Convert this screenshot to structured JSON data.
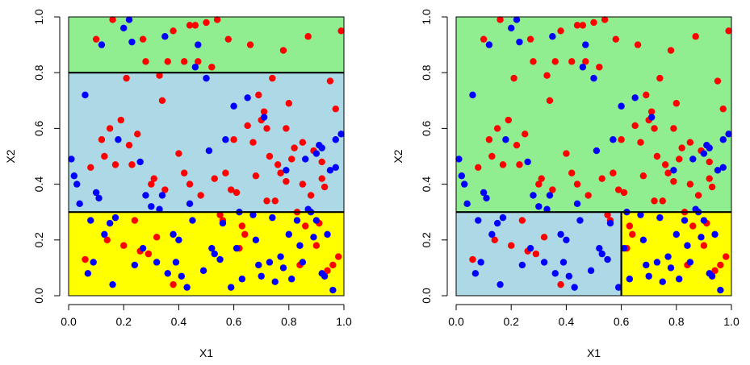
{
  "chart_data": [
    {
      "type": "scatter",
      "xlabel": "X1",
      "ylabel": "X2",
      "xlim": [
        0,
        1
      ],
      "ylim": [
        0,
        1
      ],
      "xticks": [
        "0.0",
        "0.2",
        "0.4",
        "0.6",
        "0.8",
        "1.0"
      ],
      "yticks": [
        "0.0",
        "0.2",
        "0.4",
        "0.6",
        "0.8",
        "1.0"
      ],
      "regions": [
        {
          "x0": 0,
          "x1": 1,
          "y0": 0.0,
          "y1": 0.3,
          "color": "#ffff00"
        },
        {
          "x0": 0,
          "x1": 1,
          "y0": 0.3,
          "y1": 0.8,
          "color": "#add8e6"
        },
        {
          "x0": 0,
          "x1": 1,
          "y0": 0.8,
          "y1": 1.0,
          "color": "#90ee90"
        }
      ],
      "splits": [
        {
          "x0": 0,
          "x1": 1,
          "y0": 0.3,
          "y1": 0.3
        },
        {
          "x0": 0,
          "x1": 1,
          "y0": 0.8,
          "y1": 0.8
        }
      ],
      "series": [
        {
          "color": "#ff0000",
          "points": [
            [
              0.08,
              0.46
            ],
            [
              0.12,
              0.56
            ],
            [
              0.13,
              0.5
            ],
            [
              0.15,
              0.6
            ],
            [
              0.17,
              0.47
            ],
            [
              0.19,
              0.63
            ],
            [
              0.21,
              0.78
            ],
            [
              0.23,
              0.47
            ],
            [
              0.25,
              0.58
            ],
            [
              0.27,
              0.92
            ],
            [
              0.3,
              0.4
            ],
            [
              0.33,
              0.79
            ],
            [
              0.34,
              0.7
            ],
            [
              0.36,
              0.84
            ],
            [
              0.38,
              0.95
            ],
            [
              0.4,
              0.51
            ],
            [
              0.42,
              0.44
            ],
            [
              0.44,
              0.4
            ],
            [
              0.46,
              0.97
            ],
            [
              0.48,
              0.36
            ],
            [
              0.5,
              0.98
            ],
            [
              0.53,
              0.42
            ],
            [
              0.55,
              0.29
            ],
            [
              0.57,
              0.44
            ],
            [
              0.59,
              0.38
            ],
            [
              0.61,
              0.37
            ],
            [
              0.63,
              0.25
            ],
            [
              0.65,
              0.61
            ],
            [
              0.67,
              0.55
            ],
            [
              0.69,
              0.72
            ],
            [
              0.71,
              0.66
            ],
            [
              0.73,
              0.5
            ],
            [
              0.75,
              0.34
            ],
            [
              0.77,
              0.44
            ],
            [
              0.79,
              0.6
            ],
            [
              0.81,
              0.49
            ],
            [
              0.83,
              0.3
            ],
            [
              0.85,
              0.4
            ],
            [
              0.87,
              0.93
            ],
            [
              0.89,
              0.52
            ],
            [
              0.91,
              0.26
            ],
            [
              0.93,
              0.39
            ],
            [
              0.95,
              0.77
            ],
            [
              0.97,
              0.67
            ],
            [
              0.99,
              0.95
            ],
            [
              0.06,
              0.13
            ],
            [
              0.14,
              0.2
            ],
            [
              0.2,
              0.18
            ],
            [
              0.24,
              0.27
            ],
            [
              0.29,
              0.15
            ],
            [
              0.32,
              0.21
            ],
            [
              0.38,
              0.04
            ],
            [
              0.42,
              0.84
            ],
            [
              0.52,
              0.82
            ],
            [
              0.58,
              0.92
            ],
            [
              0.62,
              0.17
            ],
            [
              0.66,
              0.9
            ],
            [
              0.7,
              0.63
            ],
            [
              0.74,
              0.78
            ],
            [
              0.78,
              0.88
            ],
            [
              0.8,
              0.69
            ],
            [
              0.84,
              0.11
            ],
            [
              0.88,
              0.36
            ],
            [
              0.92,
              0.42
            ],
            [
              0.96,
              0.11
            ],
            [
              0.1,
              0.92
            ],
            [
              0.22,
              0.54
            ],
            [
              0.26,
              0.16
            ],
            [
              0.31,
              0.42
            ],
            [
              0.35,
              0.38
            ],
            [
              0.44,
              0.97
            ],
            [
              0.47,
              0.84
            ],
            [
              0.56,
              0.27
            ],
            [
              0.64,
              0.22
            ],
            [
              0.72,
              0.6
            ],
            [
              0.76,
              0.47
            ],
            [
              0.82,
              0.53
            ],
            [
              0.86,
              0.25
            ],
            [
              0.9,
              0.18
            ],
            [
              0.94,
              0.09
            ],
            [
              0.98,
              0.14
            ],
            [
              0.16,
              0.99
            ],
            [
              0.28,
              0.84
            ],
            [
              0.54,
              0.99
            ],
            [
              0.6,
              0.56
            ],
            [
              0.68,
              0.43
            ],
            [
              0.72,
              0.34
            ],
            [
              0.79,
              0.41
            ],
            [
              0.85,
              0.55
            ],
            [
              0.92,
              0.48
            ]
          ]
        },
        {
          "color": "#0000ff",
          "points": [
            [
              0.01,
              0.49
            ],
            [
              0.02,
              0.43
            ],
            [
              0.03,
              0.4
            ],
            [
              0.06,
              0.72
            ],
            [
              0.07,
              0.08
            ],
            [
              0.08,
              0.27
            ],
            [
              0.1,
              0.37
            ],
            [
              0.11,
              0.35
            ],
            [
              0.13,
              0.22
            ],
            [
              0.15,
              0.26
            ],
            [
              0.17,
              0.28
            ],
            [
              0.18,
              0.56
            ],
            [
              0.2,
              0.96
            ],
            [
              0.22,
              0.99
            ],
            [
              0.24,
              0.11
            ],
            [
              0.26,
              0.48
            ],
            [
              0.28,
              0.36
            ],
            [
              0.3,
              0.32
            ],
            [
              0.32,
              0.12
            ],
            [
              0.34,
              0.36
            ],
            [
              0.36,
              0.08
            ],
            [
              0.38,
              0.22
            ],
            [
              0.4,
              0.2
            ],
            [
              0.41,
              0.07
            ],
            [
              0.43,
              0.03
            ],
            [
              0.45,
              0.27
            ],
            [
              0.47,
              0.9
            ],
            [
              0.49,
              0.09
            ],
            [
              0.51,
              0.52
            ],
            [
              0.53,
              0.15
            ],
            [
              0.55,
              0.13
            ],
            [
              0.57,
              0.56
            ],
            [
              0.59,
              0.03
            ],
            [
              0.61,
              0.17
            ],
            [
              0.63,
              0.06
            ],
            [
              0.65,
              0.71
            ],
            [
              0.67,
              0.29
            ],
            [
              0.69,
              0.11
            ],
            [
              0.71,
              0.64
            ],
            [
              0.73,
              0.12
            ],
            [
              0.75,
              0.05
            ],
            [
              0.77,
              0.14
            ],
            [
              0.79,
              0.45
            ],
            [
              0.81,
              0.06
            ],
            [
              0.83,
              0.27
            ],
            [
              0.85,
              0.12
            ],
            [
              0.87,
              0.31
            ],
            [
              0.89,
              0.21
            ],
            [
              0.91,
              0.54
            ],
            [
              0.93,
              0.07
            ],
            [
              0.95,
              0.45
            ],
            [
              0.97,
              0.56
            ],
            [
              0.99,
              0.58
            ],
            [
              0.12,
              0.9
            ],
            [
              0.23,
              0.91
            ],
            [
              0.35,
              0.93
            ],
            [
              0.46,
              0.82
            ],
            [
              0.5,
              0.78
            ],
            [
              0.6,
              0.68
            ],
            [
              0.7,
              0.07
            ],
            [
              0.8,
              0.22
            ],
            [
              0.88,
              0.3
            ],
            [
              0.9,
              0.27
            ],
            [
              0.92,
              0.08
            ],
            [
              0.96,
              0.02
            ],
            [
              0.04,
              0.33
            ],
            [
              0.09,
              0.12
            ],
            [
              0.16,
              0.04
            ],
            [
              0.27,
              0.17
            ],
            [
              0.33,
              0.31
            ],
            [
              0.39,
              0.12
            ],
            [
              0.44,
              0.33
            ],
            [
              0.52,
              0.17
            ],
            [
              0.56,
              0.26
            ],
            [
              0.62,
              0.3
            ],
            [
              0.68,
              0.2
            ],
            [
              0.74,
              0.28
            ],
            [
              0.78,
              0.1
            ],
            [
              0.84,
              0.18
            ],
            [
              0.94,
              0.22
            ],
            [
              0.86,
              0.49
            ],
            [
              0.9,
              0.51
            ],
            [
              0.92,
              0.53
            ],
            [
              0.97,
              0.46
            ]
          ]
        }
      ]
    },
    {
      "type": "scatter",
      "xlabel": "X1",
      "ylabel": "X2",
      "xlim": [
        0,
        1
      ],
      "ylim": [
        0,
        1
      ],
      "xticks": [
        "0.0",
        "0.2",
        "0.4",
        "0.6",
        "0.8",
        "1.0"
      ],
      "yticks": [
        "0.0",
        "0.2",
        "0.4",
        "0.6",
        "0.8",
        "1.0"
      ],
      "regions": [
        {
          "x0": 0,
          "x1": 1,
          "y0": 0.3,
          "y1": 1.0,
          "color": "#90ee90"
        },
        {
          "x0": 0,
          "x1": 0.6,
          "y0": 0.0,
          "y1": 0.3,
          "color": "#add8e6"
        },
        {
          "x0": 0.6,
          "x1": 1,
          "y0": 0.0,
          "y1": 0.3,
          "color": "#ffff00"
        }
      ],
      "splits": [
        {
          "x0": 0,
          "x1": 1,
          "y0": 0.3,
          "y1": 0.3
        },
        {
          "x0": 0.6,
          "x1": 0.6,
          "y0": 0.0,
          "y1": 0.3
        }
      ],
      "series_ref": 0
    }
  ]
}
